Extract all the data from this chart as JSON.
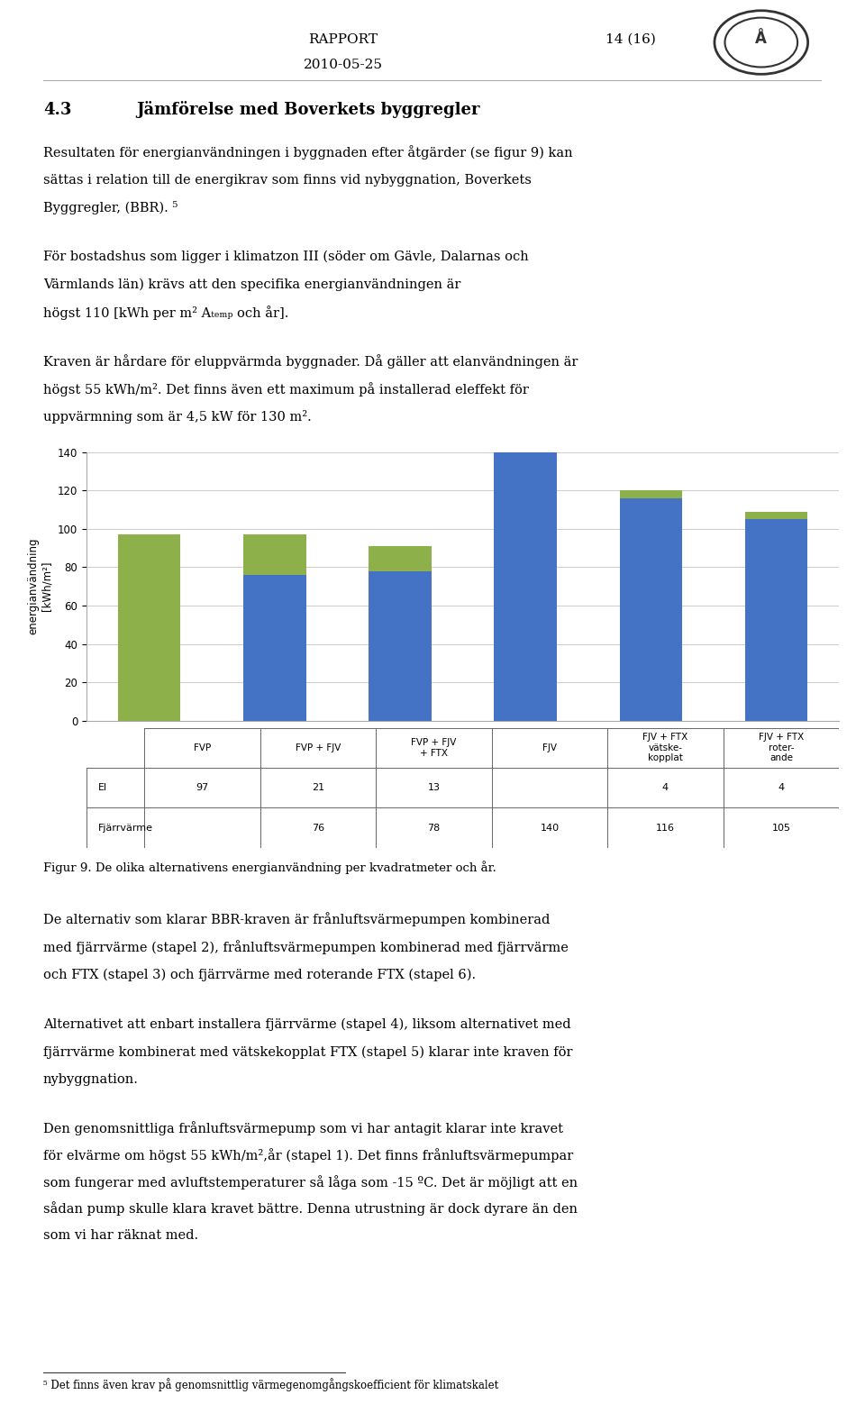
{
  "categories": [
    "FVP",
    "FVP + FJV",
    "FVP + FJV\n+ FTX",
    "FJV",
    "FJV + FTX\nvätske-\nkopplat",
    "FJV + FTX\nroter-\nande"
  ],
  "el_values": [
    97,
    21,
    13,
    0,
    4,
    4
  ],
  "fjarr_values": [
    0,
    76,
    78,
    140,
    116,
    105
  ],
  "el_color": "#8DB04A",
  "fjarr_color": "#4472C4",
  "ylim": [
    0,
    140
  ],
  "yticks": [
    0,
    20,
    40,
    60,
    80,
    100,
    120,
    140
  ],
  "el_row_values": [
    "97",
    "21",
    "13",
    "",
    "4",
    "4"
  ],
  "fjarr_row_values": [
    "",
    "76",
    "78",
    "140",
    "116",
    "105"
  ],
  "table_header_el": "El",
  "table_header_fjarr": "Fjärrvärme",
  "background_color": "#ffffff",
  "grid_color": "#cccccc",
  "fig_width": 9.6,
  "fig_height": 15.68,
  "header_left": "RAPPORT\n2010-05-25",
  "header_right": "14 (16)",
  "section_title": "4.3        Jämförelse med Boverkets byggregler",
  "para1": "Resultaten för energianvändningen i byggnaden efter åtgärder (se figur 9) kan\nsättas i relation till de energikrav som finns vid nybyggnation, Boverkets\nByggregler, (BBR).⁵",
  "para2": "För bostadshus som ligger i klimatzon III (söder om Gävle, Dalarnas och\nVärmlands län) krävs att den specifika energianvändningen är\nhögst 110 [kWh per m² A_temp och år].",
  "para3": "Kraven är hårdare för eluppvärmda byggnader. Då gäller att elanvändningen är\nhögst 55 kWh/m². Det finns även ett maximum på installerad eleffekt för\nupp värmning som är 4,5 kW för 130 m².",
  "fig_caption": "Figur 9. De olika alternativens energianvändning per kvadratmeter och år.",
  "para4": "De alternativ som klarar BBR-kraven är frånluftsvärmepumpen kombinerad\nmed fjärrvärme (stapel 2), frånluftsvärmepumpen kombinerad med fjärrvärme\noch FTX (stapel 3) och fjärrvärme med roterande FTX (stapel 6).",
  "para5": "Alternativet att enbart installera fjärrvärme (stapel 4), liksom alternativet med\nfjärrvärme kombinerat med vätskekopplat FTX (stapel 5) klarar inte kraven för\nnybyggnation.",
  "para6": "Den genomsnittliga frånluftsvärmepump som vi har antagit klarar inte kravet\nför elvärme om högst 55 kWh/m²,år (stapel 1). Det finns frånluftsvärmepumpar\nsom fungerar med avluftstemperaturer så låga som -15 ºC. Det är möjligt att en\nsådan pump skulle klara kravet bättre. Denna utrustning är dock dyrare än den\nsom vi har räknat med.",
  "footnote": "⁵ Det finns även krav på genomsnittlig värmegenomgångskoefficient för klimatskalet"
}
